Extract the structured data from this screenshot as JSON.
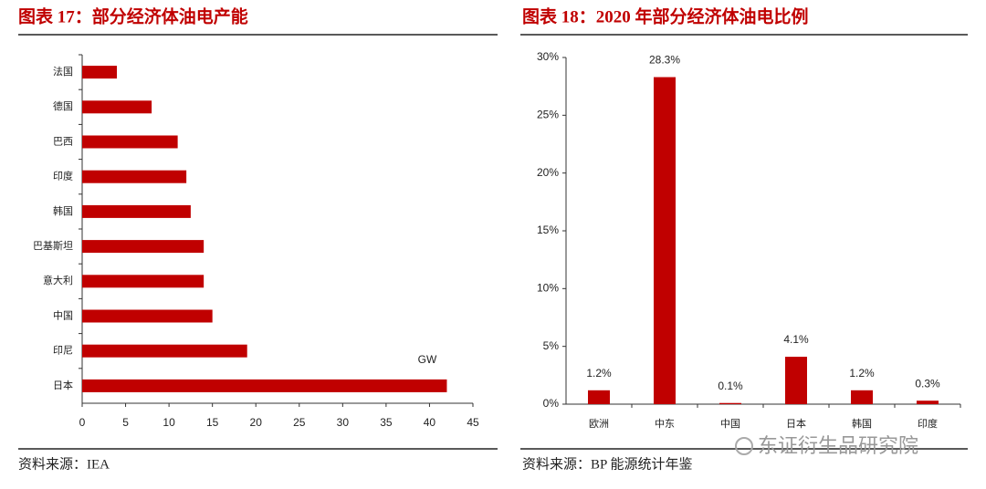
{
  "chart_data": [
    {
      "type": "barh",
      "title": "图表 17：部分经济体油电产能",
      "source": "资料来源：IEA",
      "annotation": "GW",
      "categories": [
        "法国",
        "德国",
        "巴西",
        "印度",
        "韩国",
        "巴基斯坦",
        "意大利",
        "中国",
        "印尼",
        "日本"
      ],
      "values": [
        4,
        8,
        11,
        12,
        12.5,
        14,
        14,
        15,
        19,
        42
      ],
      "color": "#c00000",
      "xlim": [
        0,
        45
      ],
      "xticks": [
        0,
        5,
        10,
        15,
        20,
        25,
        30,
        35,
        40,
        45
      ],
      "grid": false
    },
    {
      "type": "bar",
      "title": "图表 18：2020 年部分经济体油电比例",
      "source": "资料来源：BP 能源统计年鉴",
      "categories": [
        "欧洲",
        "中东",
        "中国",
        "日本",
        "韩国",
        "印度"
      ],
      "values": [
        1.2,
        28.3,
        0.1,
        4.1,
        1.2,
        0.3
      ],
      "value_labels": [
        "1.2%",
        "28.3%",
        "0.1%",
        "4.1%",
        "1.2%",
        "0.3%"
      ],
      "color": "#c00000",
      "ylim": [
        0,
        30
      ],
      "yticks": [
        {
          "value": 0,
          "label": "0%"
        },
        {
          "value": 5,
          "label": "5%"
        },
        {
          "value": 10,
          "label": "10%"
        },
        {
          "value": 15,
          "label": "15%"
        },
        {
          "value": 20,
          "label": "20%"
        },
        {
          "value": 25,
          "label": "25%"
        },
        {
          "value": 30,
          "label": "30%"
        }
      ],
      "grid": false
    }
  ],
  "watermark": "东证衍生品研究院"
}
